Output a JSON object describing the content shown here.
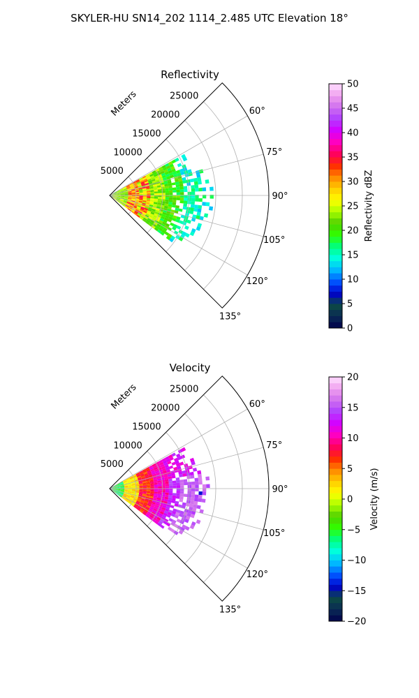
{
  "figure": {
    "suptitle": "SKYLER-HU  SN14_202  1114_2.485 UTC Elevation 18°"
  },
  "chart_data": [
    {
      "type": "heatmap",
      "title": "Reflectivity",
      "radial_label": "Meters",
      "radial_ticks": [
        5000,
        10000,
        15000,
        20000,
        25000
      ],
      "radial_tick_labels": [
        "5000",
        "10000",
        "15000",
        "20000",
        "25000"
      ],
      "radial_range": [
        0,
        30000
      ],
      "angular_range_deg": [
        45,
        135
      ],
      "angular_ticks": [
        60,
        75,
        90,
        105,
        120,
        135
      ],
      "angular_tick_labels": [
        "60°",
        "75°",
        "90°",
        "105°",
        "120°",
        "135°"
      ],
      "grid": true,
      "data_extent": {
        "range_max_m": 20000,
        "azimuth_min_deg": 61,
        "azimuth_max_deg": 127
      },
      "colorbar": {
        "label": "Reflectivity dBZ",
        "range": [
          0,
          50
        ],
        "ticks": [
          0,
          5,
          10,
          15,
          20,
          25,
          30,
          35,
          40,
          45,
          50
        ],
        "tick_labels": [
          "0",
          "5",
          "10",
          "15",
          "20",
          "25",
          "30",
          "35",
          "40",
          "45",
          "50"
        ]
      }
    },
    {
      "type": "heatmap",
      "title": "Velocity",
      "radial_label": "Meters",
      "radial_ticks": [
        5000,
        10000,
        15000,
        20000,
        25000
      ],
      "radial_tick_labels": [
        "5000",
        "10000",
        "15000",
        "20000",
        "25000"
      ],
      "radial_range": [
        0,
        30000
      ],
      "angular_range_deg": [
        45,
        135
      ],
      "angular_ticks": [
        60,
        75,
        90,
        105,
        120,
        135
      ],
      "angular_tick_labels": [
        "60°",
        "75°",
        "90°",
        "105°",
        "120°",
        "135°"
      ],
      "grid": true,
      "data_extent": {
        "range_max_m": 20000,
        "azimuth_min_deg": 61,
        "azimuth_max_deg": 127
      },
      "colorbar": {
        "label": "Velocity (m/s)",
        "range": [
          -20,
          20
        ],
        "ticks": [
          -20,
          -15,
          -10,
          -5,
          0,
          5,
          10,
          15,
          20
        ],
        "tick_labels": [
          "−20",
          "−15",
          "−10",
          "−5",
          "0",
          "5",
          "10",
          "15",
          "20"
        ]
      }
    }
  ],
  "colormap_stops": {
    "reflectivity": [
      "#00004a",
      "#0a2a55",
      "#0c4a44",
      "#0000cc",
      "#0055ff",
      "#00b8ff",
      "#00ffe0",
      "#00ff80",
      "#30ff00",
      "#50d000",
      "#aaff00",
      "#ffff00",
      "#ffcc00",
      "#ff8800",
      "#ff2a00",
      "#ff0060",
      "#ff00c0",
      "#d400ff",
      "#b040ff",
      "#d070ee",
      "#f0a0ee",
      "#ffe0ff"
    ],
    "velocity": [
      "#00004a",
      "#0a2a55",
      "#0c4a44",
      "#0000cc",
      "#0055ff",
      "#00b8ff",
      "#00ffe0",
      "#00ff80",
      "#30ff00",
      "#50d000",
      "#aaff00",
      "#ffff00",
      "#ffcc00",
      "#ff8800",
      "#ff2a00",
      "#ff0060",
      "#ff00c0",
      "#d400ff",
      "#b040ff",
      "#d070ee",
      "#f0a0ee",
      "#ffe0ff"
    ]
  }
}
